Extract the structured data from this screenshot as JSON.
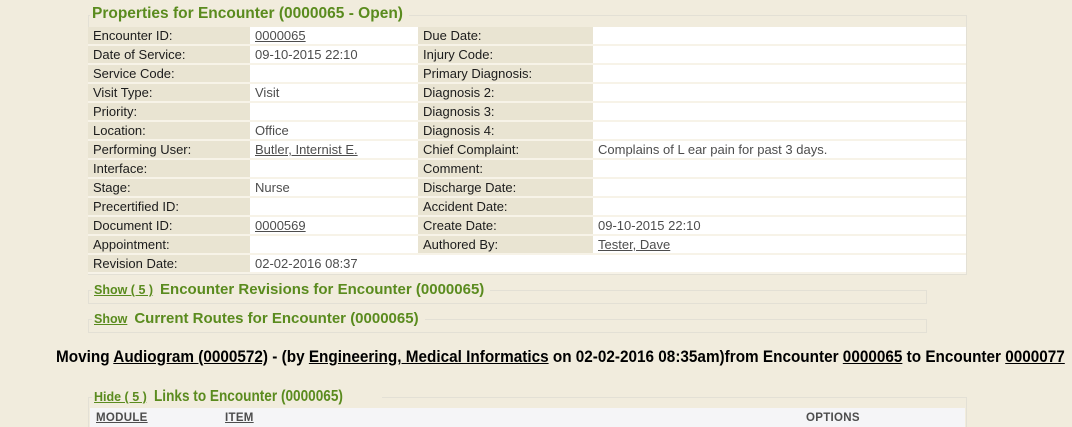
{
  "page": {
    "bg_color": "#F1ECDD",
    "accent_green": "#5A8B1E"
  },
  "properties": {
    "title": "Properties for Encounter (0000065 - Open)",
    "rows": [
      {
        "label1": "Encounter ID:",
        "value1": "0000065",
        "link1": true,
        "label2": "Due Date:",
        "value2": "",
        "link2": false,
        "full_span": false
      },
      {
        "label1": "Date of Service:",
        "value1": "09-10-2015 22:10",
        "link1": false,
        "label2": "Injury Code:",
        "value2": "",
        "link2": false,
        "full_span": false
      },
      {
        "label1": "Service Code:",
        "value1": "",
        "link1": false,
        "label2": "Primary Diagnosis:",
        "value2": "",
        "link2": false,
        "full_span": false
      },
      {
        "label1": "Visit Type:",
        "value1": "Visit",
        "link1": false,
        "label2": "Diagnosis 2:",
        "value2": "",
        "link2": false,
        "full_span": false
      },
      {
        "label1": "Priority:",
        "value1": "",
        "link1": false,
        "label2": "Diagnosis 3:",
        "value2": "",
        "link2": false,
        "full_span": false
      },
      {
        "label1": "Location:",
        "value1": "Office",
        "link1": false,
        "label2": "Diagnosis 4:",
        "value2": "",
        "link2": false,
        "full_span": false
      },
      {
        "label1": "Performing User:",
        "value1": "Butler, Internist E.",
        "link1": true,
        "label2": "Chief Complaint:",
        "value2": "Complains of L ear pain for past 3 days.",
        "link2": false,
        "full_span": false
      },
      {
        "label1": "Interface:",
        "value1": "",
        "link1": false,
        "label2": "Comment:",
        "value2": "",
        "link2": false,
        "full_span": false
      },
      {
        "label1": "Stage:",
        "value1": "Nurse",
        "link1": false,
        "label2": "Discharge Date:",
        "value2": "",
        "link2": false,
        "full_span": false
      },
      {
        "label1": "Precertified ID:",
        "value1": "",
        "link1": false,
        "label2": "Accident Date:",
        "value2": "",
        "link2": false,
        "full_span": false
      },
      {
        "label1": "Document ID:",
        "value1": "0000569",
        "link1": true,
        "label2": "Create Date:",
        "value2": "09-10-2015 22:10",
        "link2": false,
        "full_span": false
      },
      {
        "label1": "Appointment:",
        "value1": "",
        "link1": false,
        "label2": "Authored By:",
        "value2": "Tester, Dave",
        "link2": true,
        "full_span": false
      },
      {
        "label1": "Revision Date:",
        "value1": "02-02-2016 08:37",
        "link1": false,
        "label2": "",
        "value2": "",
        "link2": false,
        "full_span": true
      }
    ]
  },
  "revisions": {
    "toggle_label": "Show ( 5 )",
    "title": "Encounter Revisions for Encounter (0000065)"
  },
  "routes": {
    "toggle_label": "Show",
    "title": "Current Routes for Encounter (0000065)"
  },
  "moving_banner": {
    "segments": [
      {
        "text": "Moving ",
        "u": false
      },
      {
        "text": "Audiogram (0000572)",
        "u": true
      },
      {
        "text": " - (by ",
        "u": false
      },
      {
        "text": "Engineering, Medical Informatics",
        "u": true
      },
      {
        "text": " on 02-02-2016 08:35am)from Encounter ",
        "u": false
      },
      {
        "text": "0000065",
        "u": true
      },
      {
        "text": " to Encounter ",
        "u": false
      },
      {
        "text": "0000077",
        "u": true
      }
    ]
  },
  "links": {
    "toggle_label": "Hide ( 5 )",
    "title": "Links to Encounter (0000065)",
    "columns": [
      {
        "label": "MODULE",
        "link": true
      },
      {
        "label": "ITEM",
        "link": true
      },
      {
        "label": "OPTIONS",
        "link": false
      }
    ]
  }
}
